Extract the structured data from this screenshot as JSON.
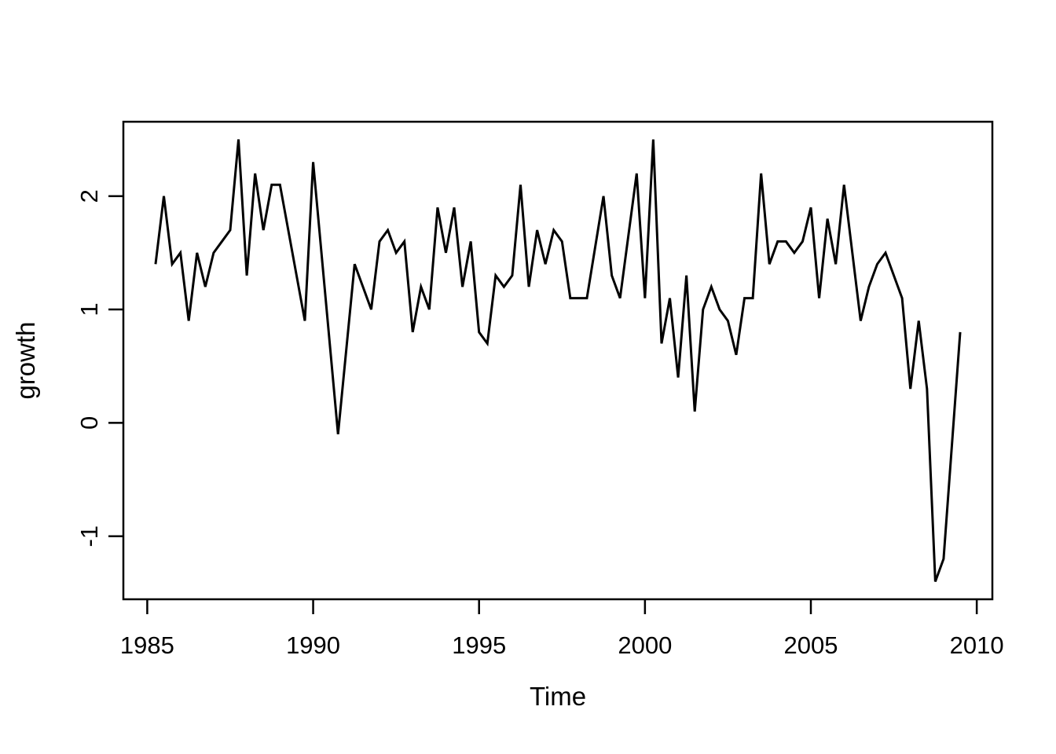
{
  "figure": {
    "background": "#ffffff",
    "foreground": "#000000",
    "line_width": 3,
    "axis_line_width": 2.5,
    "tick_length": 19
  },
  "chart_data": {
    "type": "line",
    "title": "",
    "xlabel": "Time",
    "ylabel": "growth",
    "series_name": "growth",
    "frequency": 4,
    "x_start": 1985.25,
    "x_step": 0.25,
    "x_end": 2009.5,
    "values": [
      1.4,
      2.0,
      1.4,
      1.5,
      0.9,
      1.5,
      1.2,
      1.5,
      1.6,
      1.7,
      2.5,
      1.3,
      2.2,
      1.7,
      2.1,
      2.1,
      1.7,
      1.3,
      0.9,
      2.3,
      1.5,
      0.7,
      -0.1,
      0.65,
      1.4,
      1.2,
      1.0,
      1.6,
      1.7,
      1.5,
      1.6,
      0.8,
      1.2,
      1.0,
      1.9,
      1.5,
      1.9,
      1.2,
      1.6,
      0.8,
      0.7,
      1.3,
      1.2,
      1.3,
      2.1,
      1.2,
      1.7,
      1.4,
      1.7,
      1.6,
      1.1,
      1.1,
      1.1,
      1.55,
      2.0,
      1.3,
      1.1,
      1.65,
      2.2,
      1.1,
      2.5,
      0.7,
      1.1,
      0.4,
      1.3,
      0.1,
      1.0,
      1.2,
      1.0,
      0.9,
      0.6,
      1.1,
      1.1,
      2.2,
      1.4,
      1.6,
      1.6,
      1.5,
      1.6,
      1.9,
      1.1,
      1.8,
      1.4,
      2.1,
      1.5,
      0.9,
      1.2,
      1.4,
      1.5,
      1.3,
      1.1,
      0.3,
      0.9,
      0.3,
      -1.4,
      -1.2,
      -0.2,
      0.8
    ],
    "xlim": [
      1984.28,
      2010.47
    ],
    "ylim": [
      -1.556,
      2.656
    ],
    "x_ticks": [
      1985,
      1990,
      1995,
      2000,
      2005,
      2010
    ],
    "x_tick_labels": [
      "1985",
      "1990",
      "1995",
      "2000",
      "2005",
      "2010"
    ],
    "y_ticks": [
      -1,
      0,
      1,
      2
    ],
    "y_tick_labels": [
      "-1",
      "0",
      "1",
      "2"
    ],
    "grid": false,
    "legend_position": "none",
    "box_type": "o"
  }
}
